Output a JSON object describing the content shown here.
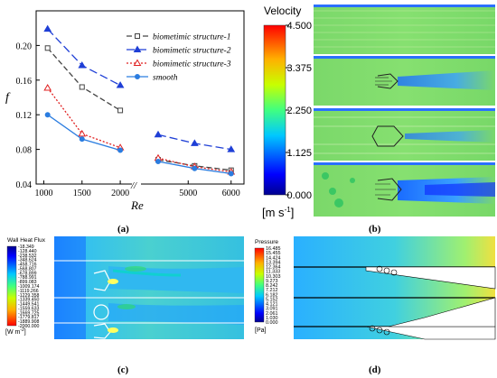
{
  "chart_data": {
    "type": "line",
    "title": "",
    "xlabel": "Re",
    "ylabel": "f",
    "ylim": [
      0.04,
      0.24
    ],
    "yticks": [
      "0.04",
      "0.08",
      "0.12",
      "0.16",
      "0.20"
    ],
    "xticks_left": [
      "1000",
      "1500",
      "2000"
    ],
    "xticks_right": [
      "5000",
      "6000"
    ],
    "axis_break": "//",
    "legend_placement": "top-right",
    "series": [
      {
        "name": "biometimic structure-1",
        "color": "#444444",
        "dash": "6,3",
        "marker": "square",
        "points": [
          [
            1050,
            0.197
          ],
          [
            1500,
            0.152
          ],
          [
            2000,
            0.125
          ],
          [
            4300,
            0.068
          ],
          [
            5150,
            0.061
          ],
          [
            6000,
            0.056
          ]
        ]
      },
      {
        "name": "biomimetic structure-2",
        "color": "#1f3fd6",
        "dash": "9,4",
        "marker": "triangle",
        "points": [
          [
            1050,
            0.219
          ],
          [
            1500,
            0.177
          ],
          [
            2000,
            0.154
          ],
          [
            4300,
            0.097
          ],
          [
            5150,
            0.087
          ],
          [
            6000,
            0.08
          ]
        ]
      },
      {
        "name": "biomimetic structure-3",
        "color": "#e02020",
        "dash": "2,2",
        "marker": "triangle-open",
        "points": [
          [
            1050,
            0.151
          ],
          [
            1500,
            0.098
          ],
          [
            2000,
            0.082
          ],
          [
            4300,
            0.07
          ],
          [
            5150,
            0.06
          ],
          [
            6000,
            0.054
          ]
        ]
      },
      {
        "name": "smooth",
        "color": "#2b7de0",
        "dash": "",
        "marker": "circle",
        "points": [
          [
            1050,
            0.12
          ],
          [
            1500,
            0.092
          ],
          [
            2000,
            0.079
          ],
          [
            4300,
            0.066
          ],
          [
            5150,
            0.058
          ],
          [
            6000,
            0.052
          ]
        ]
      }
    ]
  },
  "panels": {
    "a": "(a)",
    "b": "(b)",
    "c": "(c)",
    "d": "(d)"
  },
  "velocity": {
    "title": "Velocity",
    "ticks": [
      "4.500",
      "3.375",
      "2.250",
      "1.125",
      "0.000"
    ],
    "unit": "[m s",
    "unit_sup": "-1",
    "unit_end": "]"
  },
  "heatflux": {
    "title": "Wall Heat Flux",
    "ticks": [
      "-18.349",
      "-128.440",
      "-238.532",
      "-348.624",
      "-458.716",
      "-568.807",
      "-678.899",
      "-788.991",
      "-899.083",
      "-1009.174",
      "-1119.266",
      "-1229.358",
      "-1339.450",
      "-1449.541",
      "-1559.633",
      "-1669.725",
      "-1779.817",
      "-1889.908",
      "-2000.000"
    ],
    "unit": "[W m",
    "unit_sup": "-2",
    "unit_end": "]"
  },
  "pressure": {
    "title": "Pressure",
    "ticks": [
      "16.485",
      "15.455",
      "14.424",
      "13.394",
      "12.364",
      "11.333",
      "10.303",
      "9.273",
      "8.242",
      "7.212",
      "6.182",
      "5.152",
      "4.121",
      "3.091",
      "2.061",
      "1.030",
      "0.000"
    ],
    "unit": "[Pa]"
  },
  "colors": {
    "jet": [
      "#00008f",
      "#0000ff",
      "#0080ff",
      "#00ffff",
      "#80ff80",
      "#ffff00",
      "#ff8000",
      "#ff0000",
      "#800000"
    ]
  }
}
